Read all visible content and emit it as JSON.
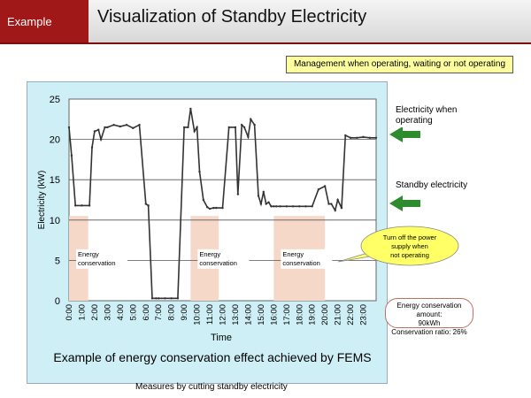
{
  "header": {
    "tag": "Example",
    "title": "Visualization of Standby Electricity"
  },
  "management_note": "Management when operating, waiting or not operating",
  "side_labels": {
    "operating": "Electricity when operating",
    "standby": "Standby electricity"
  },
  "callout": "Turn off the power supply when not operating",
  "energy_box": {
    "line1": "Energy conservation amount:",
    "line2": "90kWh",
    "line3": "Conservation ratio: 26%"
  },
  "caption": "Example of energy conservation effect achieved by FEMS",
  "footer": "Measures by cutting standby electricity",
  "colors": {
    "header_tag": "#a01818",
    "panel_bg": "#cfeff6",
    "line": "#333333",
    "shade": "#f6d8c8",
    "arrow": "#2e8b2e",
    "callout": "#ffff66"
  },
  "icons": [
    "green-arrow-icon",
    "green-arrow-icon"
  ],
  "chart_data": {
    "type": "line",
    "title": "",
    "xlabel": "Time",
    "ylabel": "Electricity (kW)",
    "ylim": [
      0,
      25
    ],
    "yticks": [
      0,
      5,
      10,
      15,
      20,
      25
    ],
    "xlim": [
      0,
      24
    ],
    "xticks": [
      "0:00",
      "1:00",
      "2:00",
      "3:00",
      "4:00",
      "5:00",
      "6:00",
      "7:00",
      "8:00",
      "9:00",
      "10:00",
      "11:00",
      "12:00",
      "13:00",
      "14:00",
      "15:00",
      "16:00",
      "17:00",
      "18:00",
      "19:00",
      "20:00",
      "21:00",
      "22:00",
      "23:00"
    ],
    "grid": true,
    "shaded_regions": [
      {
        "x": [
          0.0,
          1.5
        ],
        "label": "Energy conservation"
      },
      {
        "x": [
          9.5,
          11.7
        ],
        "label": "Energy conservation"
      },
      {
        "x": [
          16.0,
          20.0
        ],
        "label": "Energy conservation"
      }
    ],
    "series": [
      {
        "x": [
          0,
          0.2,
          0.5,
          1,
          1.6,
          1.8,
          2.0,
          2.3,
          2.5,
          2.8,
          3,
          3.5,
          4,
          4.5,
          5,
          5.5,
          6,
          6.2,
          6.5,
          6.8,
          7,
          7.5,
          8,
          8.5,
          9,
          9.3,
          9.5,
          9.8,
          10,
          10.2,
          10.5,
          10.8,
          11,
          11.3,
          11.5,
          12,
          12.5,
          13,
          13.2,
          13.5,
          13.7,
          14,
          14.2,
          14.5,
          14.8,
          15,
          15.2,
          15.4,
          15.6,
          15.8,
          16,
          16.2,
          16.5,
          17,
          17.5,
          18,
          18.5,
          19,
          19.5,
          20,
          20.3,
          20.5,
          20.8,
          21,
          21.3,
          21.6,
          22,
          22.5,
          23,
          23.5,
          24
        ],
        "y": [
          21.5,
          18,
          11.8,
          11.8,
          11.8,
          19,
          21,
          21.2,
          20,
          21.5,
          21.5,
          21.8,
          21.6,
          21.8,
          21.4,
          21.8,
          12,
          11.8,
          0.3,
          0.3,
          0.3,
          0.3,
          0.3,
          0.3,
          21.5,
          21.5,
          23.8,
          21,
          21.5,
          16,
          12.5,
          11.6,
          11.4,
          11.5,
          11.5,
          11.5,
          21.5,
          21.5,
          13.2,
          21.8,
          21.5,
          20.3,
          22.5,
          21.8,
          13,
          12,
          13.5,
          12,
          12.2,
          11.7,
          11.7,
          11.7,
          11.7,
          11.7,
          11.7,
          11.7,
          11.7,
          11.7,
          13.8,
          14.2,
          12,
          12,
          11.2,
          12.5,
          11.5,
          20.5,
          20.2,
          20.2,
          20.3,
          20.2,
          20.2
        ]
      }
    ]
  }
}
